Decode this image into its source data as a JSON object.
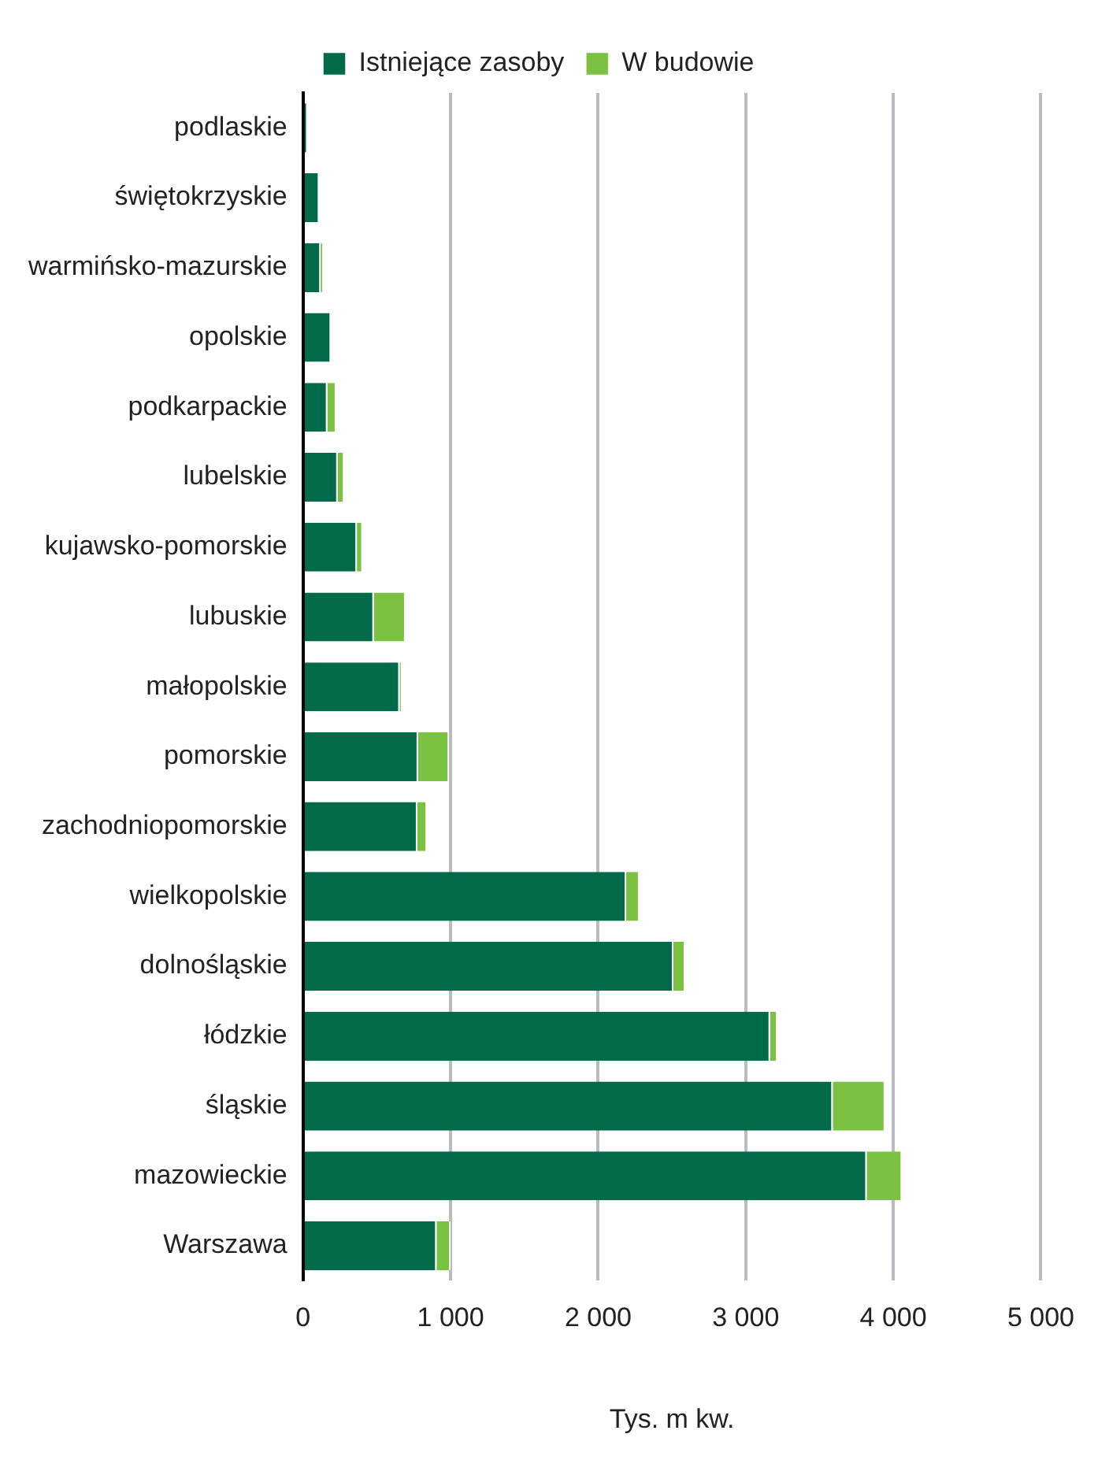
{
  "chart_data": {
    "type": "bar",
    "orientation": "horizontal",
    "stacked": true,
    "xlabel": "Tys. m kw.",
    "legend": "top",
    "grid": "x",
    "categories": [
      "podlaskie",
      "świętokrzyskie",
      "warmińsko-mazurskie",
      "opolskie",
      "podkarpackie",
      "lubelskie",
      "kujawsko-pomorskie",
      "lubuskie",
      "małopolskie",
      "pomorskie",
      "zachodniopomorskie",
      "wielkopolskie",
      "dolnośląskie",
      "łódzkie",
      "śląskie",
      "mazowieckie",
      "Warszawa"
    ],
    "series": [
      {
        "name": "Istniejące zasoby",
        "color": "#006a4a",
        "values": [
          30,
          110,
          120,
          190,
          165,
          235,
          365,
          480,
          655,
          780,
          775,
          2190,
          2510,
          3165,
          3590,
          3820,
          905
        ]
      },
      {
        "name": "W budowie",
        "color": "#7cc242",
        "values": [
          0,
          0,
          20,
          0,
          60,
          45,
          40,
          215,
          15,
          210,
          65,
          90,
          80,
          50,
          355,
          240,
          95
        ]
      }
    ],
    "xlim": [
      0,
      5000
    ],
    "xticks": [
      0,
      {
        "value": 1000,
        "label": "1 000"
      },
      {
        "value": 2000,
        "label": "2 000"
      },
      {
        "value": 3000,
        "label": "3 000"
      },
      {
        "value": 4000,
        "label": "4 000"
      },
      {
        "value": 5000,
        "label": "5 000"
      }
    ]
  }
}
